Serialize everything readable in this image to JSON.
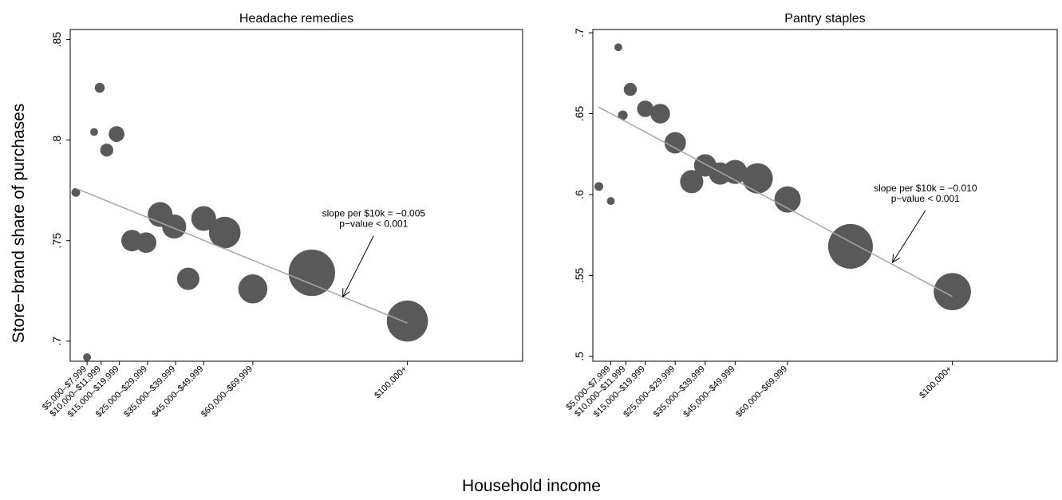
{
  "figure": {
    "ylabel": "Store−brand share of purchases",
    "xlabel": "Household income"
  },
  "styles": {
    "marker_color": "#595959",
    "fit_line_color": "#a6a6a6",
    "frame_color": "#000000"
  },
  "chart_data": [
    {
      "type": "scatter",
      "title": "Headache remedies",
      "ylim": [
        0.69,
        0.855
      ],
      "yticks": [
        0.7,
        0.75,
        0.8,
        0.85
      ],
      "ytick_labels": [
        ".7",
        ".75",
        ".8",
        ".85"
      ],
      "xlim": [
        0,
        16.1
      ],
      "xtick_positions": [
        0.6,
        1.1,
        1.75,
        2.75,
        3.75,
        4.75,
        6.5,
        12.0
      ],
      "xtick_labels": [
        "$5,000–$7,999",
        "$10,000–$11,999",
        "$15,000–$19,999",
        "$25,000–$29,999",
        "$35,000–$39,999",
        "$45,000–$49,999",
        "$60,000–$69,999",
        "$100,000+"
      ],
      "points": [
        {
          "x": 0.2,
          "y": 0.774,
          "w": 1
        },
        {
          "x": 0.6,
          "y": 0.692,
          "w": 0.8
        },
        {
          "x": 0.85,
          "y": 0.804,
          "w": 0.8
        },
        {
          "x": 1.05,
          "y": 0.826,
          "w": 1.3
        },
        {
          "x": 1.3,
          "y": 0.795,
          "w": 2.2
        },
        {
          "x": 1.65,
          "y": 0.803,
          "w": 3.2
        },
        {
          "x": 2.2,
          "y": 0.75,
          "w": 6
        },
        {
          "x": 2.7,
          "y": 0.749,
          "w": 5.5
        },
        {
          "x": 3.2,
          "y": 0.763,
          "w": 8
        },
        {
          "x": 3.7,
          "y": 0.757,
          "w": 7.5
        },
        {
          "x": 4.2,
          "y": 0.731,
          "w": 6.5
        },
        {
          "x": 4.75,
          "y": 0.761,
          "w": 8
        },
        {
          "x": 5.5,
          "y": 0.754,
          "w": 13
        },
        {
          "x": 6.5,
          "y": 0.726,
          "w": 11
        },
        {
          "x": 8.6,
          "y": 0.734,
          "w": 28
        },
        {
          "x": 12.0,
          "y": 0.71,
          "w": 22
        }
      ],
      "fit": {
        "x": [
          0.2,
          12.0
        ],
        "y": [
          0.776,
          0.709
        ]
      },
      "annotation": {
        "lines": [
          "slope per $10k = −0.005",
          "p−value < 0.001"
        ],
        "x": 10.8,
        "y": 0.762,
        "arrow_to": [
          9.7,
          0.722
        ]
      }
    },
    {
      "type": "scatter",
      "title": "Pantry staples",
      "ylim": [
        0.497,
        0.702
      ],
      "yticks": [
        0.5,
        0.55,
        0.6,
        0.65,
        0.7
      ],
      "ytick_labels": [
        ".5",
        ".55",
        ".6",
        ".65",
        ".7"
      ],
      "xlim": [
        0,
        15.5
      ],
      "xtick_positions": [
        0.6,
        1.1,
        1.75,
        2.75,
        3.75,
        4.75,
        6.5,
        12.0
      ],
      "xtick_labels": [
        "$5,000–$7,999",
        "$10,000–$11,999",
        "$15,000–$19,999",
        "$25,000–$29,999",
        "$35,000–$39,999",
        "$45,000–$49,999",
        "$60,000–$69,999",
        "$100,000+"
      ],
      "points": [
        {
          "x": 0.2,
          "y": 0.605,
          "w": 1
        },
        {
          "x": 0.6,
          "y": 0.596,
          "w": 0.8
        },
        {
          "x": 0.85,
          "y": 0.691,
          "w": 0.8
        },
        {
          "x": 1.0,
          "y": 0.649,
          "w": 1.2
        },
        {
          "x": 1.25,
          "y": 0.665,
          "w": 2.2
        },
        {
          "x": 1.75,
          "y": 0.653,
          "w": 3.5
        },
        {
          "x": 2.25,
          "y": 0.65,
          "w": 5
        },
        {
          "x": 2.75,
          "y": 0.632,
          "w": 6
        },
        {
          "x": 3.3,
          "y": 0.608,
          "w": 7
        },
        {
          "x": 3.75,
          "y": 0.618,
          "w": 6.5
        },
        {
          "x": 4.25,
          "y": 0.613,
          "w": 6.5
        },
        {
          "x": 4.75,
          "y": 0.614,
          "w": 7.5
        },
        {
          "x": 5.5,
          "y": 0.61,
          "w": 12
        },
        {
          "x": 6.5,
          "y": 0.597,
          "w": 9
        },
        {
          "x": 8.6,
          "y": 0.568,
          "w": 26
        },
        {
          "x": 12.0,
          "y": 0.54,
          "w": 18
        }
      ],
      "fit": {
        "x": [
          0.2,
          12.0
        ],
        "y": [
          0.654,
          0.537
        ]
      },
      "annotation": {
        "lines": [
          "slope per $10k = −0.010",
          "p−value < 0.001"
        ],
        "x": 11.1,
        "y": 0.602,
        "arrow_to": [
          10.0,
          0.558
        ]
      }
    }
  ]
}
